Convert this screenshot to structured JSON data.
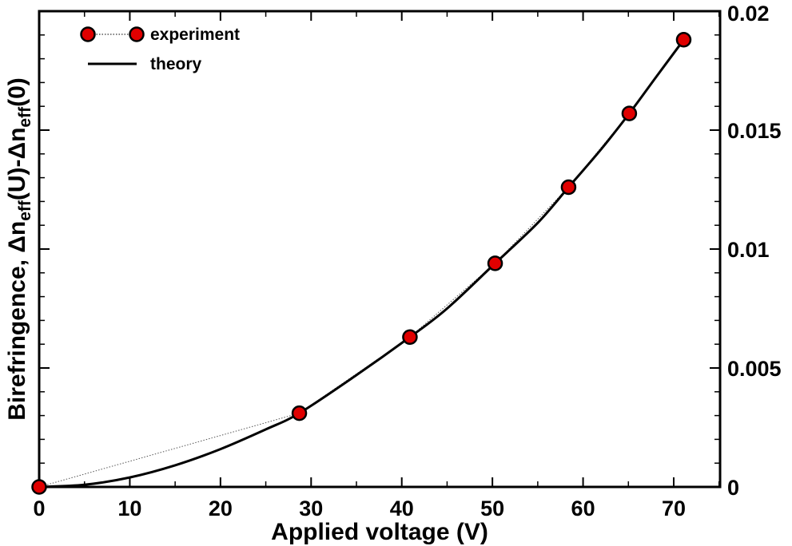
{
  "chart_data": {
    "type": "scatter",
    "xlabel": "Applied voltage (V)",
    "ylabel": {
      "prefix": "Birefringence, ",
      "delta": "Δ",
      "n1": "n",
      "sub1": "eff",
      "mid": "(U)-",
      "delta2": "Δ",
      "n2": "n",
      "sub2": "eff",
      "suffix": "(0)"
    },
    "xlim": [
      0,
      75
    ],
    "ylim": [
      0,
      0.02
    ],
    "x_ticks": [
      0,
      10,
      20,
      30,
      40,
      50,
      60,
      70
    ],
    "x_tick_labels": [
      "0",
      "10",
      "20",
      "30",
      "40",
      "50",
      "60",
      "70"
    ],
    "y_ticks": [
      0,
      0.005,
      0.01,
      0.015,
      0.02
    ],
    "y_tick_labels": [
      "0",
      "0.005",
      "0.01",
      "0.015",
      "0.02"
    ],
    "y_axis_side": "right",
    "grid": false,
    "legend_position": "top-left",
    "series": [
      {
        "name": "experiment",
        "style": "markers with dotted line",
        "color": "#e00000",
        "x": [
          0,
          28.7,
          40.9,
          50.3,
          58.4,
          65.1,
          71.1
        ],
        "y": [
          0,
          0.0031,
          0.0063,
          0.0094,
          0.0126,
          0.0157,
          0.0188
        ]
      },
      {
        "name": "theory",
        "style": "solid line",
        "color": "#000000",
        "x": [
          0,
          5,
          10,
          15,
          20,
          25,
          28.7,
          35,
          40.9,
          45,
          50.3,
          55,
          58.4,
          62,
          65.1,
          68,
          71.1
        ],
        "y": [
          0,
          9e-05,
          0.0004,
          0.00091,
          0.00159,
          0.00242,
          0.0031,
          0.0047,
          0.0063,
          0.0075,
          0.0094,
          0.0111,
          0.0126,
          0.0142,
          0.0157,
          0.0172,
          0.0188
        ]
      }
    ]
  }
}
